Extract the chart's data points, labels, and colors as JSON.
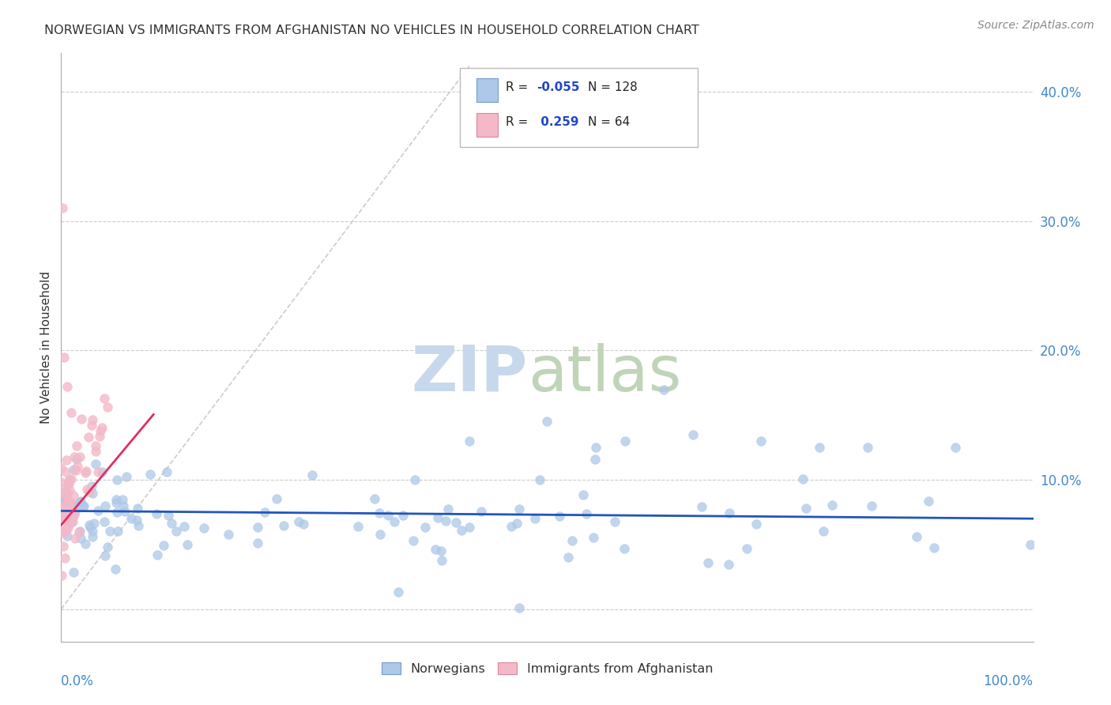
{
  "title": "NORWEGIAN VS IMMIGRANTS FROM AFGHANISTAN NO VEHICLES IN HOUSEHOLD CORRELATION CHART",
  "source": "Source: ZipAtlas.com",
  "ylabel": "No Vehicles in Household",
  "ytick_values": [
    0.0,
    0.1,
    0.2,
    0.3,
    0.4
  ],
  "xlim": [
    0.0,
    1.0
  ],
  "ylim": [
    -0.025,
    0.43
  ],
  "legend_norwegian": "Norwegians",
  "legend_afghan": "Immigrants from Afghanistan",
  "R_norwegian": -0.055,
  "N_norwegian": 128,
  "R_afghan": 0.259,
  "N_afghan": 64,
  "color_norwegian": "#adc8e8",
  "color_afghan": "#f4b8c8",
  "trendline_norwegian": "#2255bb",
  "trendline_afghan": "#e03060",
  "diag_color": "#cccccc",
  "background_color": "#ffffff",
  "grid_color": "#cccccc",
  "title_color": "#333333",
  "axis_label_color": "#4488cc",
  "r_value_color": "#2244cc",
  "watermark_zip_color": "#c8d8ec",
  "watermark_atlas_color": "#c0d4b8"
}
